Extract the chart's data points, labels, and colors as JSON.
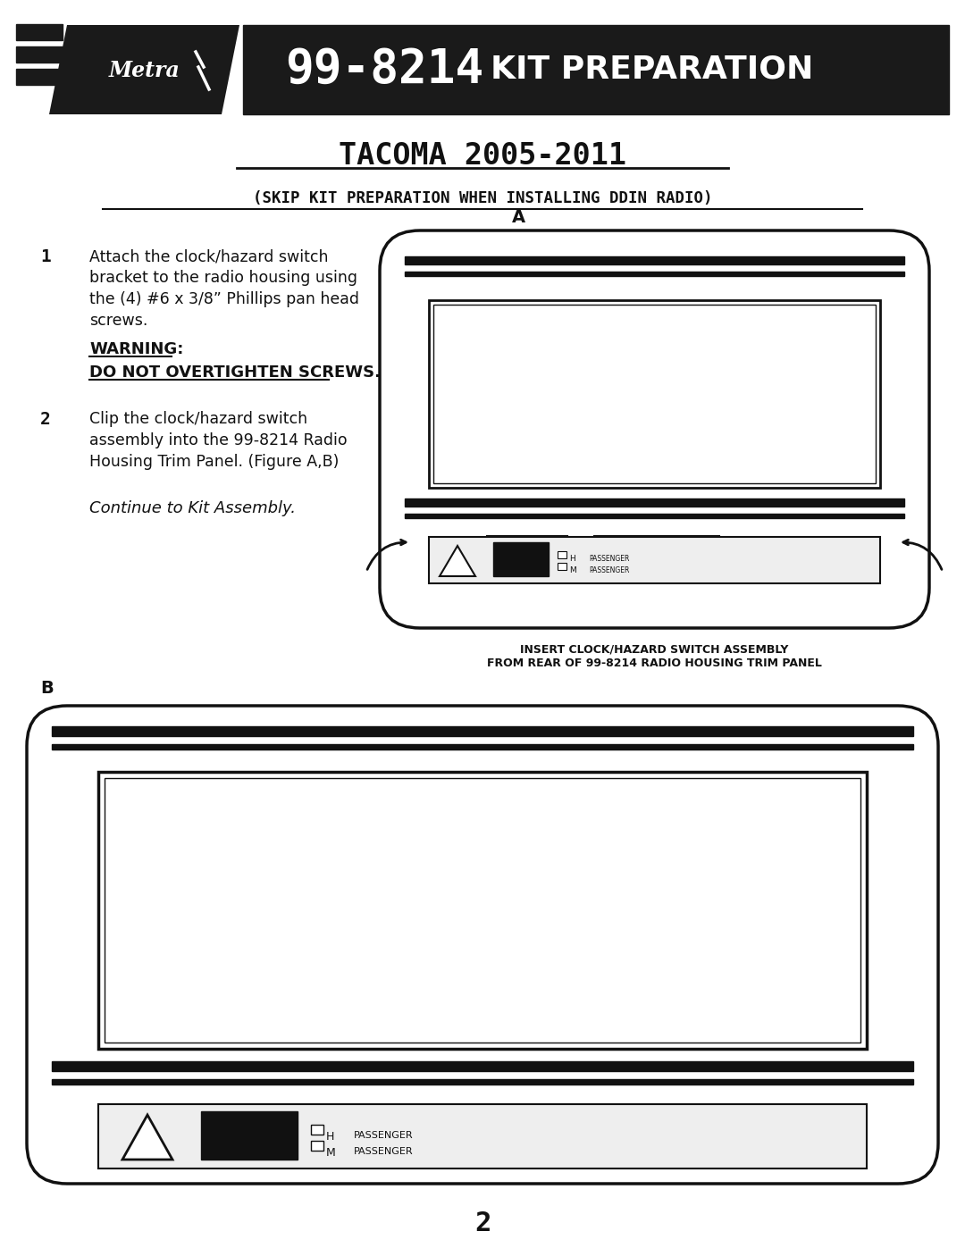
{
  "bg_color": "#ffffff",
  "header_bg": "#1a1a1a",
  "header_text_color": "#ffffff",
  "header_number": "99-8214",
  "header_title": "KIT PREPARATION",
  "title_main": "TACOMA 2005-2011",
  "title_sub": "(SKIP KIT PREPARATION WHEN INSTALLING DDIN RADIO)",
  "step1_num": "1",
  "step1_lines": [
    "Attach the clock/hazard switch",
    "bracket to the radio housing using",
    "the (4) #6 x 3/8” Phillips pan head",
    "screws."
  ],
  "step1_warning1": "WARNING:",
  "step1_warning2": "DO NOT OVERTIGHTEN SCREWS.",
  "step2_num": "2",
  "step2_lines": [
    "Clip the clock/hazard switch",
    "assembly into the 99-8214 Radio",
    "Housing Trim Panel. (Figure A,B)"
  ],
  "continue_text": "Continue to Kit Assembly.",
  "fig_a_label": "A",
  "fig_b_label": "B",
  "insert_caption1": "INSERT CLOCK/HAZARD SWITCH ASSEMBLY",
  "insert_caption2": "FROM REAR OF 99-8214 RADIO HOUSING TRIM PANEL",
  "page_num": "2",
  "text_color": "#111111",
  "line_color": "#111111"
}
